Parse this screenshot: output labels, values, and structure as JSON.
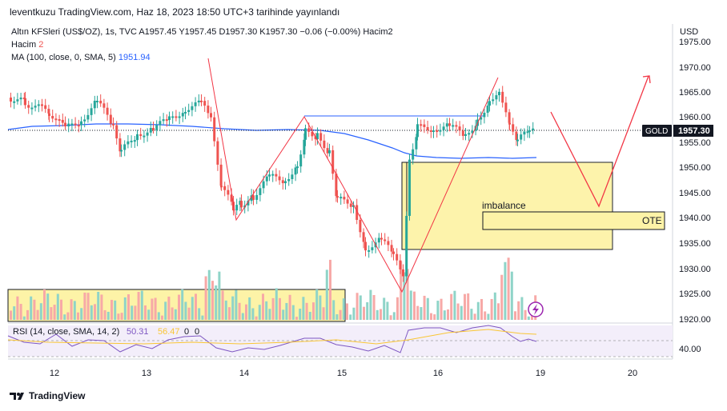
{
  "header": {
    "published": "leventkuzu TradingView.com, Haz 18, 2023 18:50 UTC+3 tarihinde yayınlandı"
  },
  "legend": {
    "symbol": "Altın KFSleri (US$/OZ), 1s, TVC",
    "open": "A1957.45",
    "high": "Y1957.45",
    "low": "D1957.30",
    "close": "K1957.30",
    "change": "−0.06 (−0.00%)",
    "volume_name": "Hacim2",
    "volume_label": "Hacim",
    "volume_value": "2",
    "ma_label": "MA (100, close, 0, SMA, 5)",
    "ma_value": "1951.94"
  },
  "price_axis": {
    "currency": "USD",
    "ticks": [
      "1975.00",
      "1970.00",
      "1965.00",
      "1960.00",
      "1955.00",
      "1950.00",
      "1945.00",
      "1940.00",
      "1935.00",
      "1930.00",
      "1925.00",
      "1920.00"
    ],
    "badge_symbol": "GOLD",
    "badge_price": "1957.30"
  },
  "annotations": {
    "imbalance": "imbalance",
    "ote": "OTE"
  },
  "rsi": {
    "label": "RSI (14, close, SMA, 14, 2)",
    "value": "50.31",
    "sma_value": "56.47",
    "extra1": "0",
    "extra2": "0",
    "tick": "40.00"
  },
  "time_axis": {
    "labels": [
      "12",
      "13",
      "14",
      "15",
      "16",
      "19",
      "20"
    ]
  },
  "footer": {
    "brand": "TradingView"
  },
  "colors": {
    "up": "#26a69a",
    "down": "#ef5350",
    "ma": "#2962ff",
    "drawing": "#f23645",
    "zone": "#fdf3a7",
    "rsi": "#7e57c2"
  }
}
